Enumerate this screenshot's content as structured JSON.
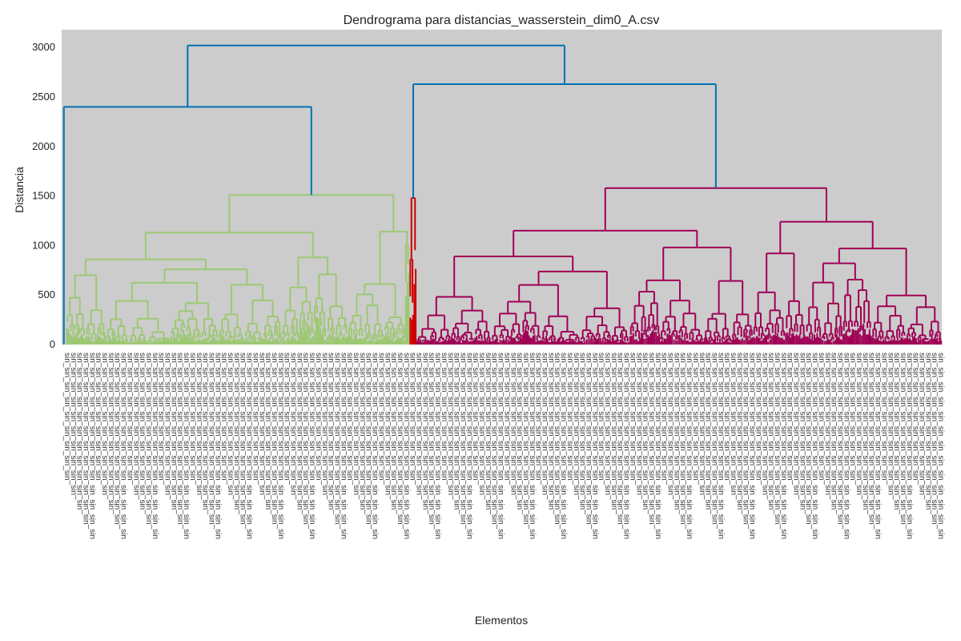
{
  "chart_data": {
    "type": "dendrogram",
    "title": "Dendrograma para distancias_wasserstein_dim0_A.csv",
    "xlabel": "Elementos",
    "ylabel": "Distancia",
    "ylim": [
      0,
      3180
    ],
    "yticks": [
      0,
      500,
      1000,
      1500,
      2000,
      2500,
      3000
    ],
    "grid": false,
    "background": "#cccccc",
    "leaf_label_rotation": 90,
    "leaf_label_text": "sin",
    "colors": {
      "above_threshold": "#0072b2",
      "cluster_green": "#9dc873",
      "cluster_red": "#cc0000",
      "cluster_magenta": "#a00055",
      "text": "#222222"
    },
    "root": {
      "height": 3020,
      "children": [
        {
          "height": 2400,
          "color": "above_threshold",
          "children": [
            {
              "leaf_range": [
                0.0,
                0.005
              ],
              "color": "above_threshold",
              "height": 0
            },
            {
              "height": 1510,
              "color": "cluster_green",
              "children": [
                {
                  "height": 1130,
                  "color": "cluster_green",
                  "children": [
                    {
                      "height": 860,
                      "color": "cluster_green",
                      "children": [
                        {
                          "height": 700,
                          "leaf_range": [
                            0.005,
                            0.05
                          ]
                        },
                        {
                          "height": 760,
                          "leaf_range": [
                            0.05,
                            0.25
                          ]
                        }
                      ]
                    },
                    {
                      "height": 880,
                      "leaf_range": [
                        0.25,
                        0.325
                      ]
                    }
                  ]
                },
                {
                  "height": 1140,
                  "color": "cluster_green",
                  "children": [
                    {
                      "height": 610,
                      "leaf_range": [
                        0.325,
                        0.39
                      ]
                    },
                    {
                      "height": 1010,
                      "leaf_range": [
                        0.39,
                        0.395
                      ]
                    }
                  ]
                }
              ]
            }
          ]
        },
        {
          "height": 2630,
          "color": "above_threshold",
          "children": [
            {
              "height": 1480,
              "color": "cluster_red",
              "children": [
                {
                  "height": 860,
                  "leaf_range": [
                    0.395,
                    0.4
                  ]
                },
                {
                  "height": 960,
                  "leaf_range": [
                    0.4,
                    0.403
                  ]
                }
              ]
            },
            {
              "height": 1580,
              "color": "cluster_magenta",
              "children": [
                {
                  "height": 1150,
                  "color": "cluster_magenta",
                  "children": [
                    {
                      "height": 890,
                      "leaf_range": [
                        0.403,
                        0.645
                      ]
                    },
                    {
                      "height": 980,
                      "leaf_range": [
                        0.645,
                        0.785
                      ]
                    }
                  ]
                },
                {
                  "height": 1240,
                  "color": "cluster_magenta",
                  "children": [
                    {
                      "height": 920,
                      "leaf_range": [
                        0.785,
                        0.845
                      ]
                    },
                    {
                      "height": 970,
                      "leaf_range": [
                        0.845,
                        1.0
                      ]
                    }
                  ]
                }
              ]
            }
          ]
        }
      ]
    }
  }
}
